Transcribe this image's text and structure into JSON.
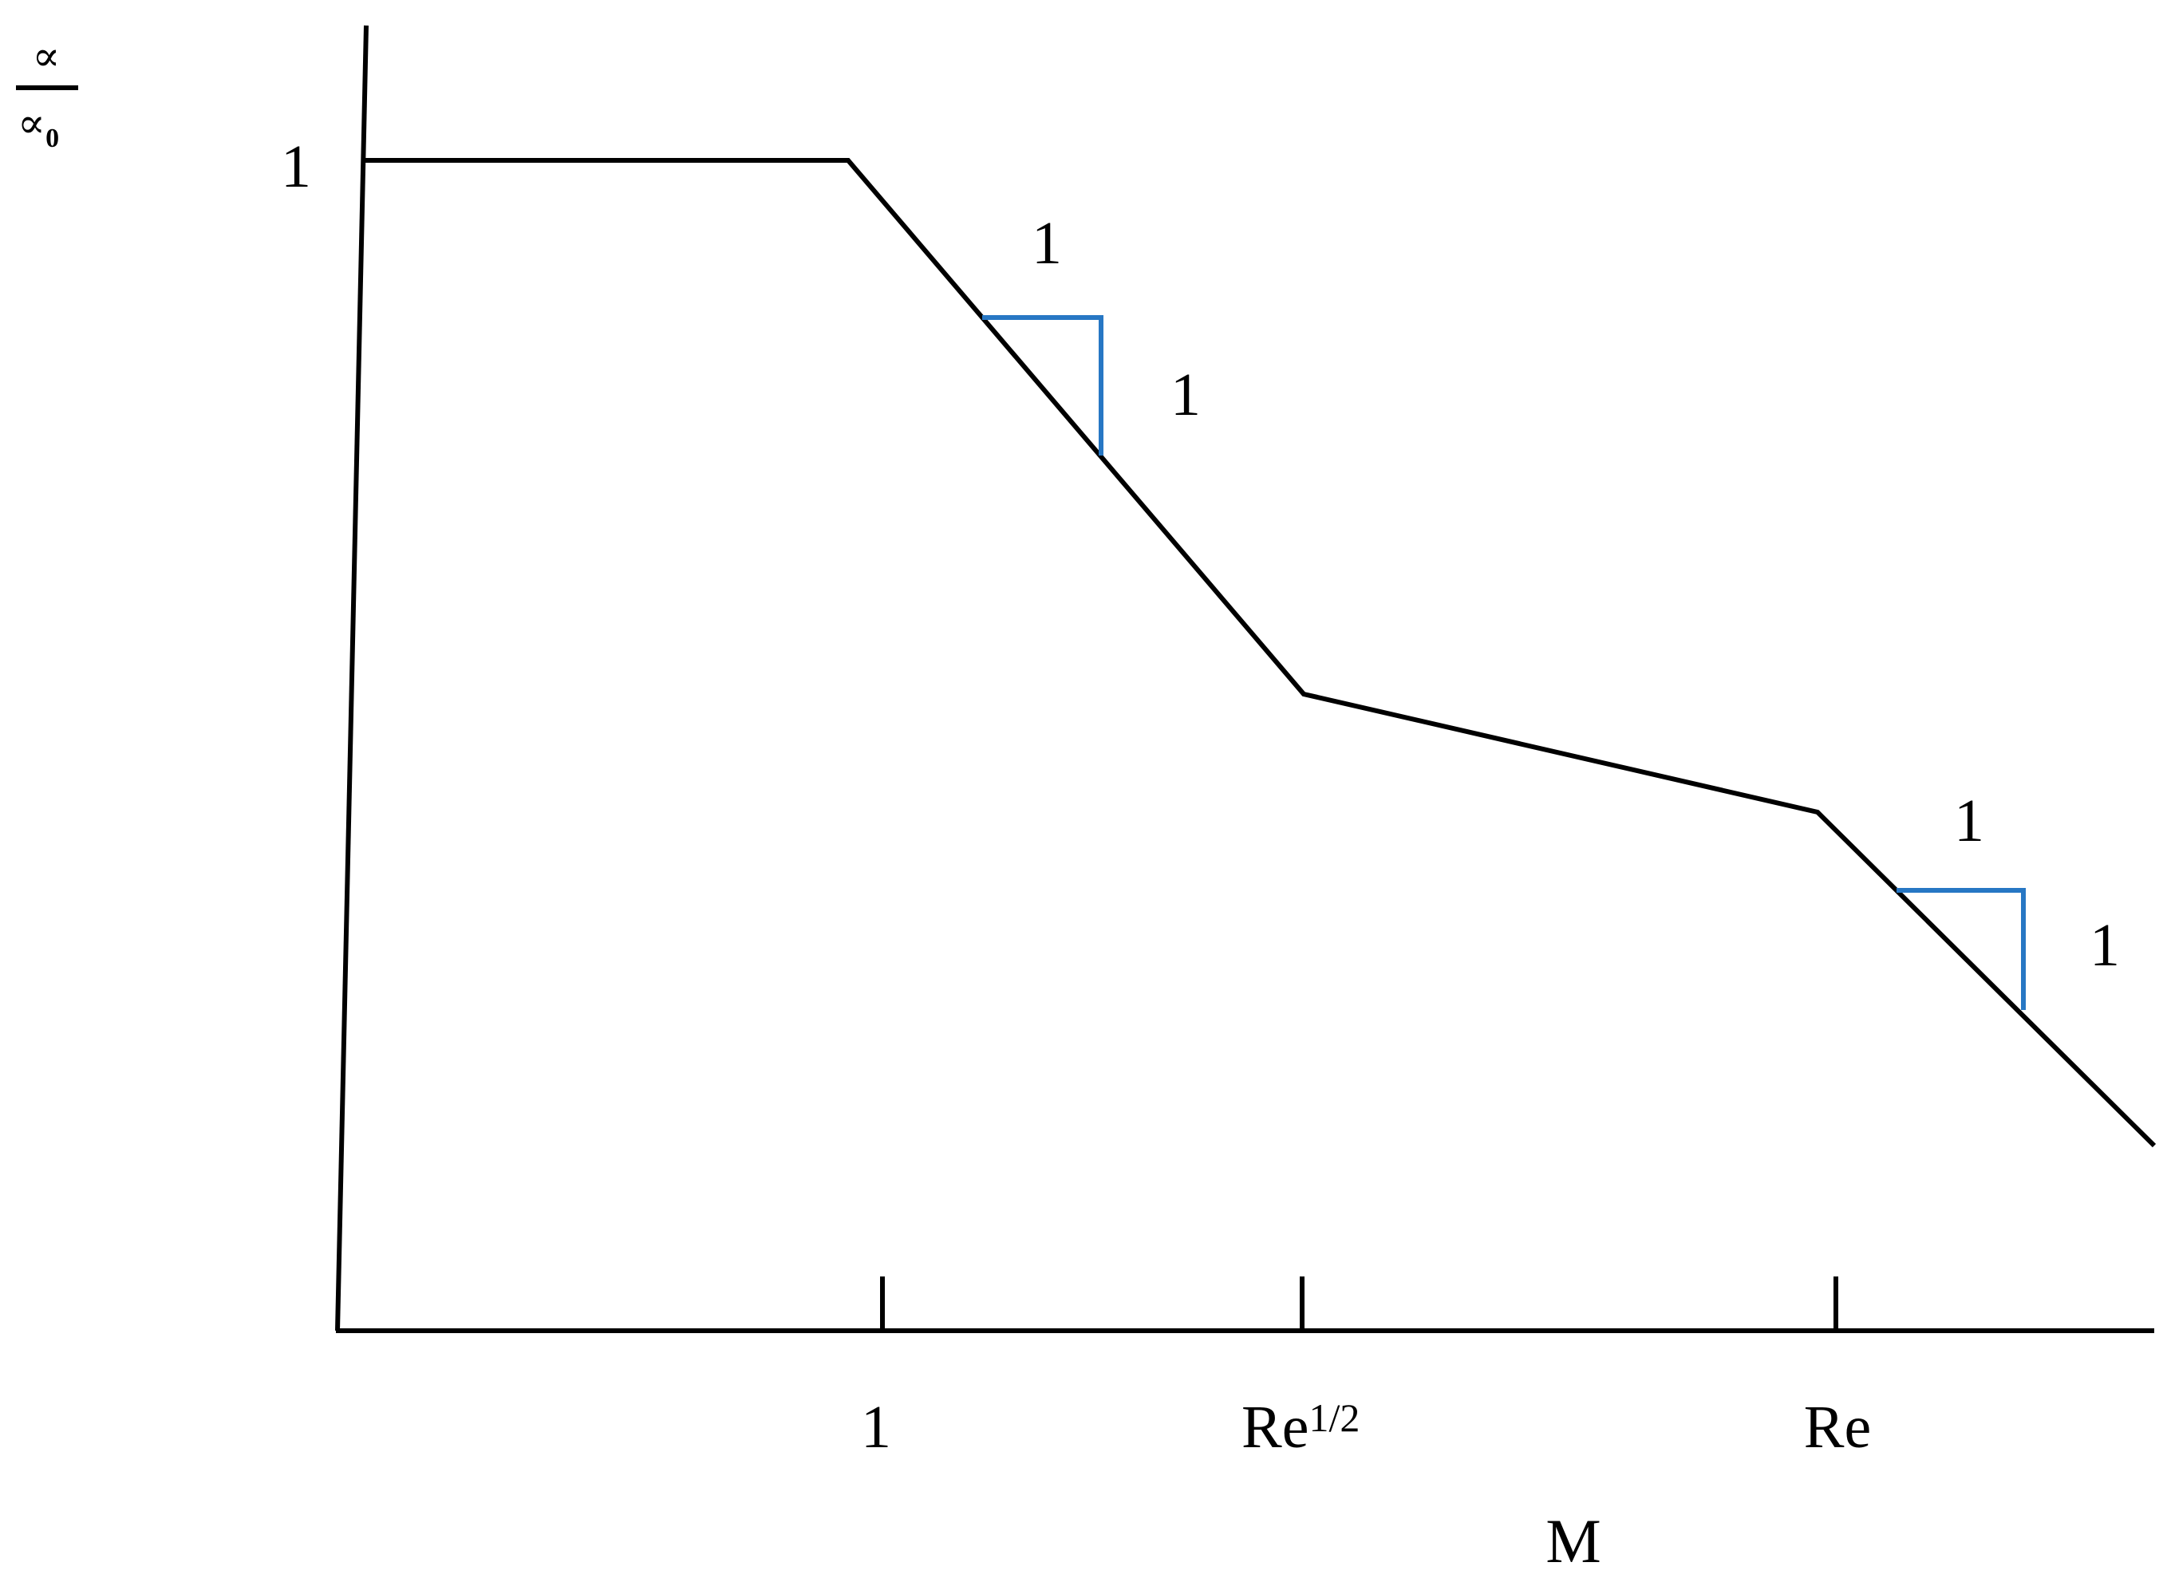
{
  "chart_data": {
    "type": "line",
    "title": "",
    "xlabel": "M",
    "ylabel": "∝ / ∝₀",
    "ylabel_numerator": "∝",
    "ylabel_denominator": "∝",
    "ylabel_denominator_sub": "0",
    "x_scale": "log",
    "y_scale": "log",
    "x_ticks": [
      {
        "label": "1"
      },
      {
        "label": "Re",
        "sup": "1/2"
      },
      {
        "label": "Re"
      }
    ],
    "y_ticks": [
      {
        "label": "1"
      }
    ],
    "series": [
      {
        "color": "#000000",
        "segments": [
          {
            "from": "start",
            "to": "1",
            "trend": "flat",
            "y_value": "1"
          },
          {
            "from": "1",
            "to": "Re^1/2",
            "trend": "decreasing",
            "slope": "-1"
          },
          {
            "from": "Re^1/2",
            "to": "Re",
            "trend": "decreasing (gentle)"
          },
          {
            "from": "Re",
            "to": "end",
            "trend": "decreasing",
            "slope": "-1"
          }
        ]
      }
    ],
    "slope_annotations": [
      {
        "segment": "1 to Re^1/2",
        "run_label": "1",
        "rise_label": "1",
        "color": "#2777c4"
      },
      {
        "segment": "beyond Re",
        "run_label": "1",
        "rise_label": "1",
        "color": "#2777c4"
      }
    ],
    "grid": false,
    "legend": "none"
  }
}
